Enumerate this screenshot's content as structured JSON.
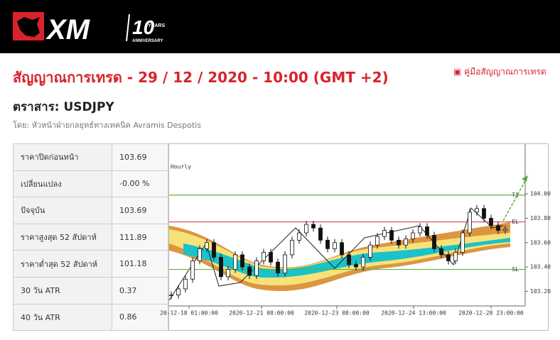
{
  "header": {
    "logo": "XM",
    "anniversary_number": "10",
    "anniversary_years": "YEARS",
    "anniversary_label": "ANNIVERSARY"
  },
  "title": "สัญญาณการเทรด - 29 / 12 / 2020 - 10:00 (GMT +2)",
  "guide_link": "คู่มือสัญญาณการเทรด",
  "instrument": "ตราสาร: USDJPY",
  "author": "โดย: หัวหน้าฝ่ายกลยุทธ์ทางเทคนิค Avramis Despotis",
  "table": {
    "rows": [
      [
        "ราคาปิดก่อนหน้า",
        "103.69"
      ],
      [
        "เปลี่ยนแปลง",
        "-0.00 %"
      ],
      [
        "ปัจจุบัน",
        "103.69"
      ],
      [
        "ราคาสูงสุด 52 สัปดาห์",
        "111.89"
      ],
      [
        "ราคาต่ำสุด 52 สัปดาห์",
        "101.18"
      ],
      [
        "30 วัน ATR",
        "0.37"
      ],
      [
        "40 วัน ATR",
        "0.86"
      ]
    ]
  },
  "chart_data": {
    "type": "candlestick",
    "timeframe": "Hourly",
    "closes": [
      103.17,
      103.22,
      103.3,
      103.45,
      103.55,
      103.6,
      103.48,
      103.32,
      103.38,
      103.5,
      103.4,
      103.33,
      103.45,
      103.52,
      103.44,
      103.35,
      103.5,
      103.62,
      103.68,
      103.75,
      103.72,
      103.62,
      103.55,
      103.6,
      103.5,
      103.42,
      103.4,
      103.48,
      103.58,
      103.65,
      103.7,
      103.62,
      103.58,
      103.63,
      103.68,
      103.73,
      103.66,
      103.55,
      103.5,
      103.45,
      103.52,
      103.68,
      103.85,
      103.88,
      103.8,
      103.74,
      103.7,
      103.71
    ],
    "ylim": [
      103.08,
      104.38
    ],
    "yticks": [
      {
        "value": 104,
        "label": "104.00"
      },
      {
        "value": 103.8,
        "label": "103.80"
      },
      {
        "value": 103.6,
        "label": "103.60"
      },
      {
        "value": 103.4,
        "label": "103.40"
      },
      {
        "value": 103.2,
        "label": "103.20"
      }
    ],
    "xlim": [
      -0.3,
      49.8
    ],
    "xticks": [
      {
        "value": 2.5,
        "label": "20-12-18 01:00:00"
      },
      {
        "value": 12.7,
        "label": "2020-12-21 08:00:00"
      },
      {
        "value": 23.3,
        "label": "2020-12-23 08:00:00"
      },
      {
        "value": 34.1,
        "label": "2020-12-24 13:00:00"
      },
      {
        "value": 45,
        "label": "2020-12-28 23:00:00"
      }
    ],
    "levels": [
      {
        "name": "T1",
        "value": 103.99,
        "color": "#5bb33b"
      },
      {
        "name": "EL",
        "value": 103.77,
        "color": "#d9535f"
      },
      {
        "name": "SL",
        "value": 103.38,
        "color": "#5bb33b"
      }
    ],
    "up_color": "#ffffff",
    "down_color": "#111111"
  }
}
